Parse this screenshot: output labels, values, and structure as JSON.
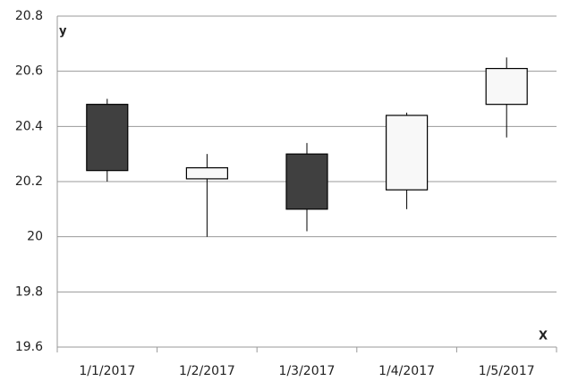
{
  "chart_data": {
    "type": "candlestick",
    "x_label": "X",
    "y_label": "y",
    "categories": [
      "1/1/2017",
      "1/2/2017",
      "1/3/2017",
      "1/4/2017",
      "1/5/2017"
    ],
    "open": [
      20.48,
      20.21,
      20.3,
      20.17,
      20.48
    ],
    "high": [
      20.5,
      20.3,
      20.34,
      20.45,
      20.65
    ],
    "low": [
      20.2,
      20.0,
      20.02,
      20.1,
      20.36
    ],
    "close": [
      20.24,
      20.25,
      20.1,
      20.44,
      20.61
    ],
    "up_color": "#f8f8f8",
    "down_color": "#404040",
    "ylim": [
      19.6,
      20.8
    ],
    "yticks": [
      19.6,
      19.8,
      20,
      20.2,
      20.4,
      20.6,
      20.8
    ],
    "grid": true
  }
}
